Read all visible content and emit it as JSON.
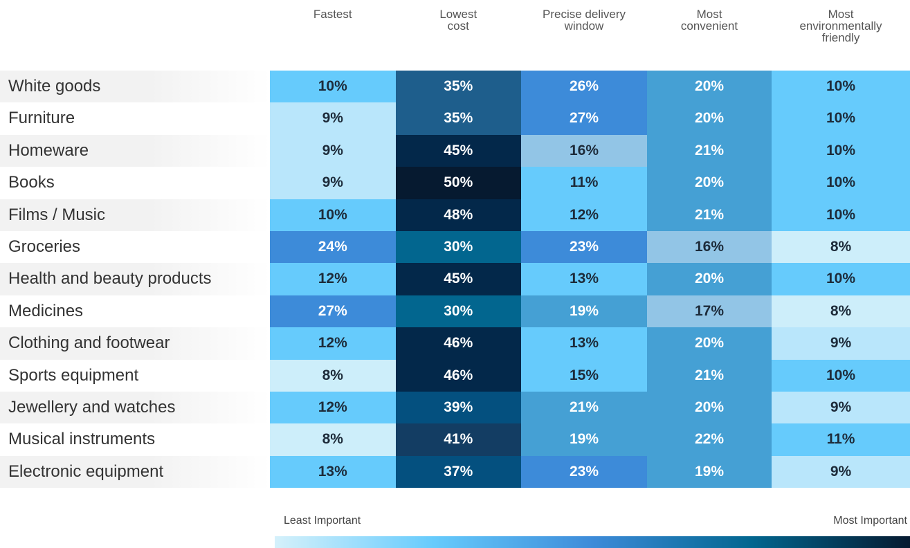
{
  "chart_data": {
    "type": "heatmap",
    "columns": [
      "Fastest",
      "Lowest\ncost",
      "Precise delivery\nwindow",
      "Most\nconvenient",
      "Most\nenvironmentally\nfriendly"
    ],
    "categories": [
      "White goods",
      "Furniture",
      "Homeware",
      "Books",
      "Films / Music",
      "Groceries",
      "Health and beauty products",
      "Medicines",
      "Clothing and footwear",
      "Sports equipment",
      "Jewellery and watches",
      "Musical instruments",
      "Electronic equipment"
    ],
    "values": [
      [
        10,
        35,
        26,
        20,
        10
      ],
      [
        9,
        35,
        27,
        20,
        10
      ],
      [
        9,
        45,
        16,
        21,
        10
      ],
      [
        9,
        50,
        11,
        20,
        10
      ],
      [
        10,
        48,
        12,
        21,
        10
      ],
      [
        24,
        30,
        23,
        16,
        8
      ],
      [
        12,
        45,
        13,
        20,
        10
      ],
      [
        27,
        30,
        19,
        17,
        8
      ],
      [
        12,
        46,
        13,
        20,
        9
      ],
      [
        8,
        46,
        15,
        21,
        10
      ],
      [
        12,
        39,
        21,
        20,
        9
      ],
      [
        8,
        41,
        19,
        22,
        11
      ],
      [
        13,
        37,
        23,
        19,
        9
      ]
    ],
    "value_labels": [
      [
        "10%",
        "35%",
        "26%",
        "20%",
        "10%"
      ],
      [
        "9%",
        "35%",
        "27%",
        "20%",
        "10%"
      ],
      [
        "9%",
        "45%",
        "16%",
        "21%",
        "10%"
      ],
      [
        "9%",
        "50%",
        "11%",
        "20%",
        "10%"
      ],
      [
        "10%",
        "48%",
        "12%",
        "21%",
        "10%"
      ],
      [
        "24%",
        "30%",
        "23%",
        "16%",
        "8%"
      ],
      [
        "12%",
        "45%",
        "13%",
        "20%",
        "10%"
      ],
      [
        "27%",
        "30%",
        "19%",
        "17%",
        "8%"
      ],
      [
        "12%",
        "46%",
        "13%",
        "20%",
        "9%"
      ],
      [
        "8%",
        "46%",
        "15%",
        "21%",
        "10%"
      ],
      [
        "12%",
        "39%",
        "21%",
        "20%",
        "9%"
      ],
      [
        "8%",
        "41%",
        "19%",
        "22%",
        "11%"
      ],
      [
        "13%",
        "37%",
        "23%",
        "19%",
        "9%"
      ]
    ],
    "colors": [
      [
        "#66cbfc",
        "#1e5e8c",
        "#3d8bd9",
        "#45a0d4",
        "#66cbfc"
      ],
      [
        "#b9e6fb",
        "#1e5e8c",
        "#3d8bd9",
        "#45a0d4",
        "#66cbfc"
      ],
      [
        "#b9e6fb",
        "#03284a",
        "#92c5e6",
        "#45a0d4",
        "#66cbfc"
      ],
      [
        "#b9e6fb",
        "#061a30",
        "#66cbfc",
        "#45a0d4",
        "#66cbfc"
      ],
      [
        "#66cbfc",
        "#03284a",
        "#66cbfc",
        "#45a0d4",
        "#66cbfc"
      ],
      [
        "#3d8bd9",
        "#02668f",
        "#3d8bd9",
        "#92c5e6",
        "#cdeefa"
      ],
      [
        "#66cbfc",
        "#03284a",
        "#66cbfc",
        "#45a0d4",
        "#66cbfc"
      ],
      [
        "#3d8bd9",
        "#02668f",
        "#45a0d4",
        "#92c5e6",
        "#cdeefa"
      ],
      [
        "#66cbfc",
        "#03284a",
        "#66cbfc",
        "#45a0d4",
        "#b9e6fb"
      ],
      [
        "#cdeefa",
        "#03284a",
        "#66cbfc",
        "#45a0d4",
        "#66cbfc"
      ],
      [
        "#66cbfc",
        "#04507f",
        "#45a0d4",
        "#45a0d4",
        "#b9e6fb"
      ],
      [
        "#cdeefa",
        "#133d63",
        "#45a0d4",
        "#45a0d4",
        "#66cbfc"
      ],
      [
        "#66cbfc",
        "#04507f",
        "#3d8bd9",
        "#45a0d4",
        "#b9e6fb"
      ]
    ],
    "legend_low": "Least Important",
    "legend_high": "Most Important",
    "colorbar_colors": [
      "#d5f1fb",
      "#66cbfc",
      "#3d8bd9",
      "#02668f",
      "#061a30"
    ]
  }
}
